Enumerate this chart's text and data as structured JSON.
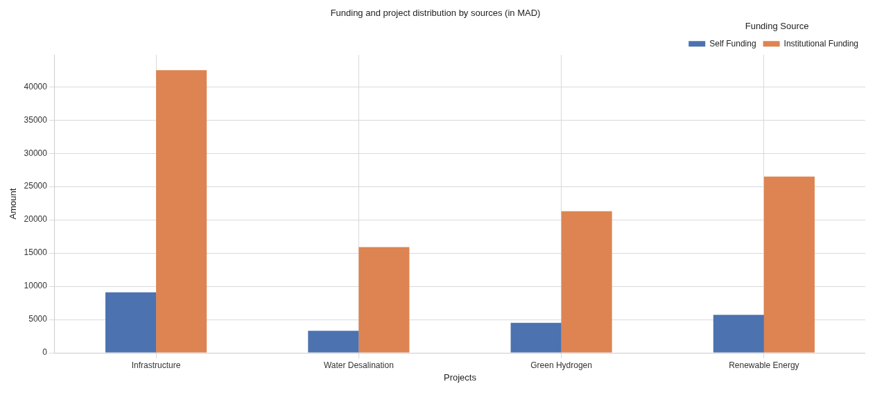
{
  "chart_data": {
    "type": "bar",
    "title": "Funding and project distribution by sources (in MAD)",
    "xlabel": "Projects",
    "ylabel": "Amount",
    "legend_title": "Funding Source",
    "categories": [
      "Infrastructure",
      "Water Desalination",
      "Green Hydrogen",
      "Renewable Energy"
    ],
    "series": [
      {
        "name": "Self Funding",
        "color": "#4c72b0",
        "values": [
          9100,
          3300,
          4500,
          5700
        ]
      },
      {
        "name": "Institutional Funding",
        "color": "#dd8452",
        "values": [
          42500,
          15900,
          21300,
          26500
        ]
      }
    ],
    "ylim": [
      0,
      44800
    ],
    "yticks": [
      0,
      5000,
      10000,
      15000,
      20000,
      25000,
      30000,
      35000,
      40000
    ],
    "grid": true,
    "legend": "top right"
  }
}
